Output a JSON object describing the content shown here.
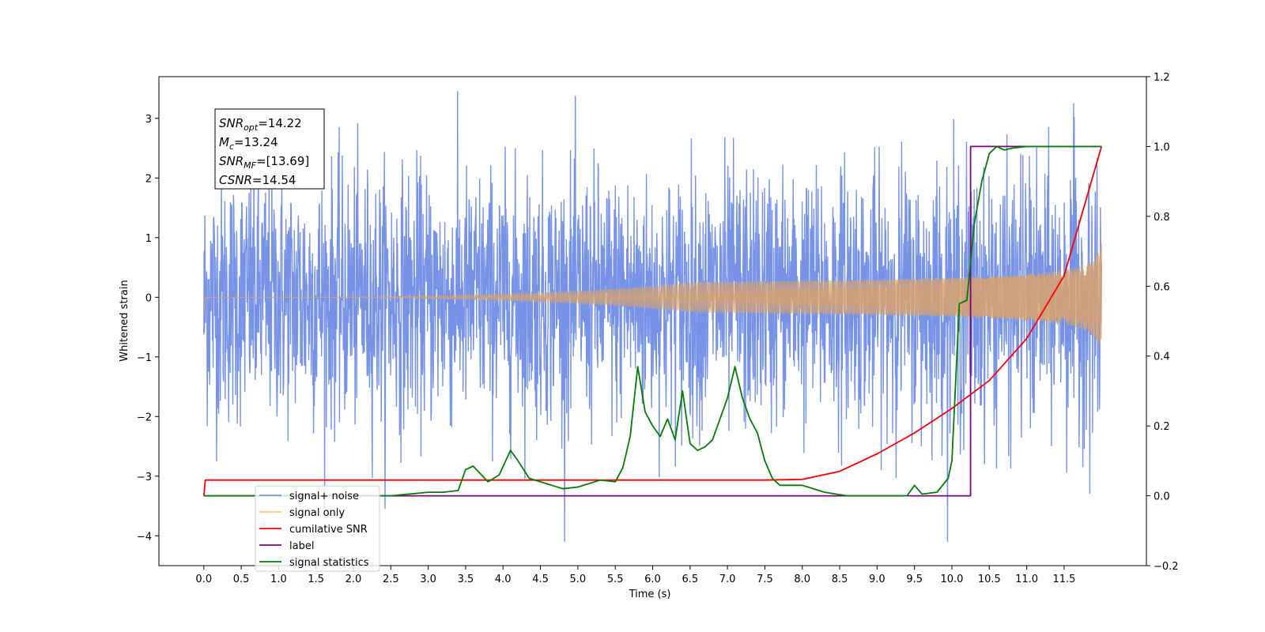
{
  "chart_data": {
    "type": "line",
    "title": "",
    "xlabel": "Time (s)",
    "ylabel": "Whitened strain",
    "xlim": [
      -0.6,
      12.6
    ],
    "ylim": [
      -4.5,
      3.7
    ],
    "y2lim": [
      -0.2,
      1.2
    ],
    "grid": false,
    "legend_position": "lower-left",
    "x_ticks": [
      "0.0",
      "0.5",
      "1.0",
      "1.5",
      "2.0",
      "2.5",
      "3.0",
      "3.5",
      "4.0",
      "4.5",
      "5.0",
      "5.5",
      "6.0",
      "6.5",
      "7.0",
      "7.5",
      "8.0",
      "8.5",
      "9.0",
      "9.5",
      "10.0",
      "10.5",
      "11.0",
      "11.5"
    ],
    "y_ticks": [
      "3",
      "2",
      "1",
      "0",
      "−1",
      "−2",
      "−3",
      "−4"
    ],
    "y2_ticks": [
      "1.2",
      "1.0",
      "0.8",
      "0.6",
      "0.4",
      "0.2",
      "0.0",
      "−0.2"
    ],
    "annotation": {
      "lines": [
        {
          "base": "SNR",
          "sub": "opt",
          "value": "=14.22"
        },
        {
          "base": "M",
          "sub": "c",
          "value": "=13.24"
        },
        {
          "base": "SNR",
          "sub": "MF",
          "value": "=[13.69]"
        },
        {
          "base": "CSNR",
          "sub": "",
          "value": "=14.54"
        }
      ]
    },
    "series": [
      {
        "name": "signal+ noise",
        "color": "#7793e8",
        "axis": "left",
        "kind": "noise",
        "x_range": [
          0.0,
          12.0
        ],
        "envelope_max": 3.5,
        "envelope_min": -4.1
      },
      {
        "name": "signal only",
        "color": "#ffc46b",
        "axis": "left",
        "kind": "chirp",
        "x_range": [
          0.0,
          12.0
        ],
        "peak_amplitude": 0.95
      },
      {
        "name": "cumilative SNR",
        "color": "#ff0000",
        "axis": "right",
        "x": [
          0.0,
          0.02,
          7.5,
          8.0,
          8.5,
          9.0,
          9.5,
          10.0,
          10.5,
          11.0,
          11.5,
          12.0
        ],
        "y": [
          0.0,
          0.045,
          0.045,
          0.047,
          0.07,
          0.12,
          0.18,
          0.25,
          0.33,
          0.45,
          0.63,
          1.0
        ]
      },
      {
        "name": "label",
        "color": "#800080",
        "axis": "right",
        "x": [
          0.0,
          10.25,
          10.25,
          12.0
        ],
        "y": [
          0.0,
          0.0,
          1.0,
          1.0
        ]
      },
      {
        "name": "signal statistics",
        "color": "#008000",
        "axis": "right",
        "x": [
          0.0,
          2.5,
          3.0,
          3.2,
          3.4,
          3.5,
          3.6,
          3.8,
          3.95,
          4.1,
          4.2,
          4.35,
          4.5,
          4.8,
          5.0,
          5.3,
          5.5,
          5.6,
          5.7,
          5.8,
          5.9,
          6.0,
          6.1,
          6.2,
          6.3,
          6.4,
          6.5,
          6.6,
          6.7,
          6.8,
          7.0,
          7.1,
          7.2,
          7.3,
          7.4,
          7.5,
          7.6,
          7.7,
          8.0,
          8.3,
          8.6,
          9.0,
          9.4,
          9.5,
          9.6,
          9.8,
          9.95,
          10.0,
          10.1,
          10.2,
          10.3,
          10.4,
          10.5,
          10.6,
          10.7,
          10.8,
          11.0,
          12.0
        ],
        "y": [
          0.0,
          0.0,
          0.01,
          0.01,
          0.015,
          0.075,
          0.085,
          0.04,
          0.06,
          0.13,
          0.1,
          0.05,
          0.04,
          0.02,
          0.025,
          0.045,
          0.04,
          0.08,
          0.17,
          0.37,
          0.24,
          0.2,
          0.17,
          0.22,
          0.16,
          0.3,
          0.15,
          0.13,
          0.14,
          0.16,
          0.28,
          0.37,
          0.28,
          0.22,
          0.18,
          0.1,
          0.05,
          0.03,
          0.03,
          0.01,
          0.0,
          0.0,
          0.0,
          0.03,
          0.005,
          0.01,
          0.05,
          0.1,
          0.55,
          0.56,
          0.78,
          0.9,
          0.98,
          1.0,
          0.99,
          0.995,
          1.0,
          1.0
        ]
      }
    ]
  }
}
